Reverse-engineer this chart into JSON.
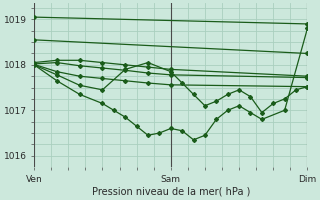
{
  "xlabel": "Pression niveau de la mer( hPa )",
  "ylim": [
    1015.75,
    1019.35
  ],
  "yticks": [
    1016,
    1017,
    1018,
    1019
  ],
  "xlim": [
    0,
    48
  ],
  "xtick_positions": [
    0,
    24,
    48
  ],
  "xtick_labels": [
    "Ven",
    "Sam",
    "Dim"
  ],
  "bg_color": "#cce8dc",
  "grid_color": "#aacfbf",
  "line_color": "#1a5c1a",
  "marker": "D",
  "marker_size": 2.0,
  "lw": 0.9,
  "series": [
    {
      "x": [
        0,
        48
      ],
      "y": [
        1019.05,
        1018.9
      ]
    },
    {
      "x": [
        0,
        48
      ],
      "y": [
        1018.55,
        1018.25
      ]
    },
    {
      "x": [
        0,
        4,
        8,
        12,
        16,
        20,
        24,
        48
      ],
      "y": [
        1018.05,
        1018.1,
        1018.1,
        1018.05,
        1018.0,
        1017.95,
        1017.9,
        1017.75
      ]
    },
    {
      "x": [
        0,
        4,
        8,
        12,
        16,
        20,
        24,
        48
      ],
      "y": [
        1018.02,
        1018.05,
        1017.98,
        1017.93,
        1017.88,
        1017.82,
        1017.78,
        1017.72
      ]
    },
    {
      "x": [
        0,
        4,
        8,
        12,
        16,
        20,
        24,
        48
      ],
      "y": [
        1018.01,
        1017.85,
        1017.75,
        1017.7,
        1017.65,
        1017.6,
        1017.56,
        1017.52
      ]
    },
    {
      "x": [
        0,
        4,
        8,
        12,
        16,
        20,
        24,
        26,
        28,
        30,
        32,
        34,
        36,
        38,
        40,
        42,
        44,
        46,
        48
      ],
      "y": [
        1018.0,
        1017.78,
        1017.55,
        1017.45,
        1017.9,
        1018.05,
        1017.85,
        1017.6,
        1017.35,
        1017.1,
        1017.2,
        1017.35,
        1017.45,
        1017.3,
        1016.95,
        1017.15,
        1017.25,
        1017.45,
        1017.52
      ]
    },
    {
      "x": [
        0,
        4,
        8,
        12,
        14,
        16,
        18,
        20,
        22,
        24,
        26,
        28,
        30,
        32,
        34,
        36,
        38,
        40,
        44,
        48
      ],
      "y": [
        1018.0,
        1017.65,
        1017.35,
        1017.15,
        1017.0,
        1016.85,
        1016.65,
        1016.45,
        1016.5,
        1016.6,
        1016.55,
        1016.35,
        1016.45,
        1016.8,
        1017.0,
        1017.1,
        1016.95,
        1016.8,
        1017.0,
        1018.8
      ]
    }
  ]
}
